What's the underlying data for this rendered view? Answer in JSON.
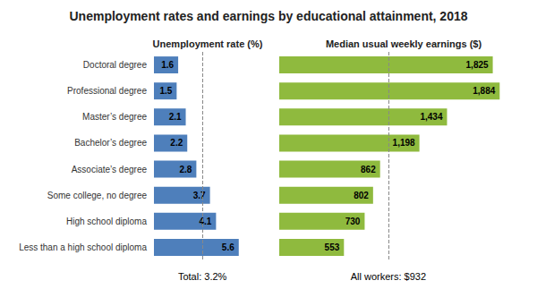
{
  "chart_data": [
    {
      "type": "bar",
      "orientation": "horizontal",
      "title": "Unemployment rates and earnings by educational attainment, 2018",
      "xlabel": "Unemployment rate (%)",
      "categories": [
        "Doctoral degree",
        "Professional degree",
        "Master’s degree",
        "Bachelor’s degree",
        "Associate’s degree",
        "Some college, no degree",
        "High school diploma",
        "Less than a high school diploma"
      ],
      "values": [
        1.6,
        1.5,
        2.1,
        2.2,
        2.8,
        3.7,
        4.1,
        5.6
      ],
      "color": "#4e7fbb",
      "xlim": [
        0,
        6.5
      ],
      "data_labels": true,
      "tick_labels": "y",
      "annotations": [
        {
          "text": "Total: 3.2%",
          "x": 3.2,
          "line_style": "dashed"
        }
      ]
    },
    {
      "type": "bar",
      "orientation": "horizontal",
      "xlabel": "Median usual weekly earnings ($)",
      "categories": [
        "Doctoral degree",
        "Professional degree",
        "Master’s degree",
        "Bachelor’s degree",
        "Associate’s degree",
        "Some college, no degree",
        "High school diploma",
        "Less than a high school diploma"
      ],
      "values": [
        1825,
        1884,
        1434,
        1198,
        862,
        802,
        730,
        553
      ],
      "value_labels": [
        "1,825",
        "1,884",
        "1,434",
        "1,198",
        "862",
        "802",
        "730",
        "553"
      ],
      "color": "#8fba3e",
      "xlim": [
        0,
        2050
      ],
      "data_labels": true,
      "tick_labels": false,
      "annotations": [
        {
          "text": "All workers: $932",
          "x": 932,
          "line_style": "dashed"
        }
      ]
    }
  ]
}
